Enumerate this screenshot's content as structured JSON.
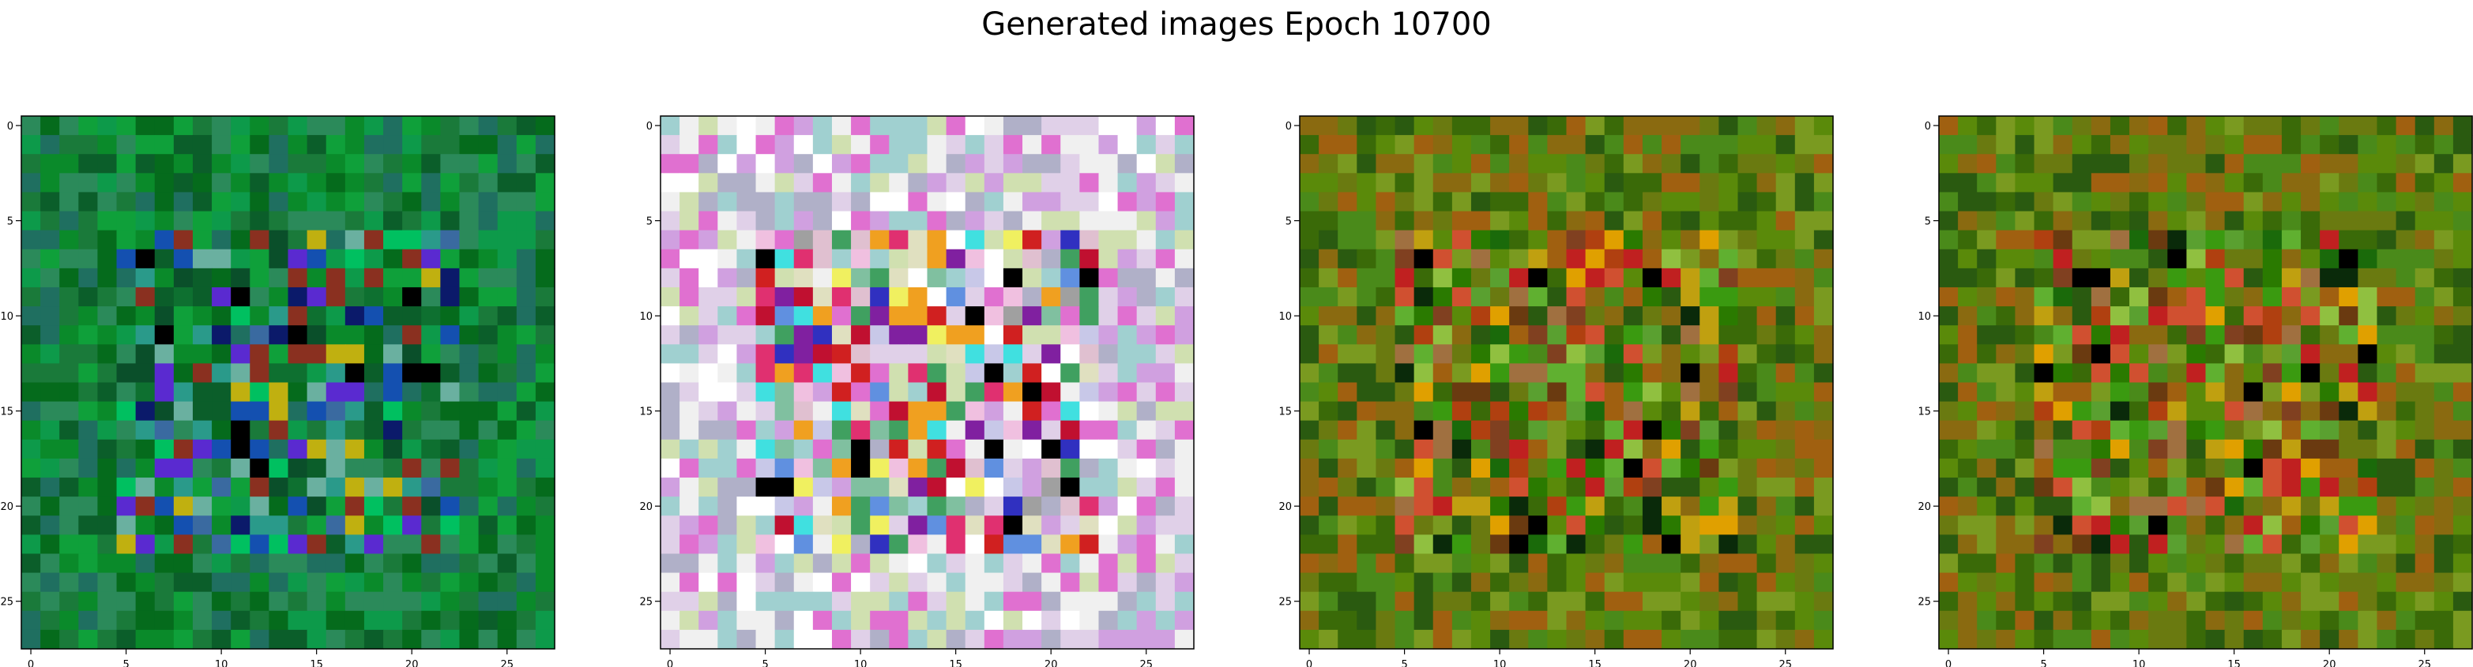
{
  "title": "Generated images Epoch 10700",
  "chart_data": [
    {
      "type": "heatmap",
      "palette": "green",
      "xticks": [
        "0",
        "5",
        "10",
        "15",
        "20",
        "25"
      ],
      "yticks": [
        "0",
        "5",
        "10",
        "15",
        "20",
        "25"
      ],
      "xlim": [
        -0.5,
        27.5
      ],
      "ylim": [
        27.5,
        -0.5
      ],
      "grid": false
    },
    {
      "type": "heatmap",
      "palette": "pastel",
      "xticks": [
        "0",
        "5",
        "10",
        "15",
        "20",
        "25"
      ],
      "yticks": [
        "0",
        "5",
        "10",
        "15",
        "20",
        "25"
      ],
      "xlim": [
        -0.5,
        27.5
      ],
      "ylim": [
        27.5,
        -0.5
      ],
      "grid": false
    },
    {
      "type": "heatmap",
      "palette": "olive",
      "xticks": [
        "0",
        "5",
        "10",
        "15",
        "20",
        "25"
      ],
      "yticks": [
        "0",
        "5",
        "10",
        "15",
        "20",
        "25"
      ],
      "xlim": [
        -0.5,
        27.5
      ],
      "ylim": [
        27.5,
        -0.5
      ],
      "grid": false
    },
    {
      "type": "heatmap",
      "palette": "olive",
      "xticks": [
        "0",
        "5",
        "10",
        "15",
        "20",
        "25"
      ],
      "yticks": [
        "0",
        "5",
        "10",
        "15",
        "20",
        "25"
      ],
      "xlim": [
        -0.5,
        27.5
      ],
      "ylim": [
        27.5,
        -0.5
      ],
      "grid": false
    }
  ],
  "palettes": {
    "green": [
      "#0a8a2a",
      "#056b1c",
      "#0fa03a",
      "#1a7a3a",
      "#0b5e2a",
      "#2b8a5a",
      "#0d9a4a",
      "#1f6f60",
      "#0a4f2a",
      "#2a9a8a",
      "#3a6aa0",
      "#1450b0",
      "#0b1a6a",
      "#5a2ad0",
      "#000000",
      "#6ab0a0",
      "#00c060",
      "#c0b010",
      "#8a3020",
      "#0e7030"
    ],
    "pastel": [
      "#e0d0e8",
      "#d0a0e0",
      "#b0b0c8",
      "#f0f0f0",
      "#ffffff",
      "#e070d0",
      "#a0d0d0",
      "#d0e0b0",
      "#c8c8e8",
      "#e0c0d0",
      "#80c0a0",
      "#6090e0",
      "#e03070",
      "#c01030",
      "#f0a020",
      "#f0f060",
      "#40e0e0",
      "#3030c0",
      "#8020a0",
      "#000000",
      "#a0a0a0",
      "#e0e0c0",
      "#f0c0e0",
      "#d02020",
      "#40a060"
    ],
    "olive": [
      "#5a8a0a",
      "#6a7a10",
      "#3a6a08",
      "#4a8a1a",
      "#2a5a10",
      "#7a9a20",
      "#8a6a10",
      "#a06010",
      "#3a9a10",
      "#1a6a0a",
      "#c0a010",
      "#b04010",
      "#c02020",
      "#0a2a0a",
      "#000000",
      "#6a3a10",
      "#a07040",
      "#90c040",
      "#d05030",
      "#5aa030",
      "#2a7a00",
      "#e0a000",
      "#804020",
      "#60b030"
    ]
  }
}
